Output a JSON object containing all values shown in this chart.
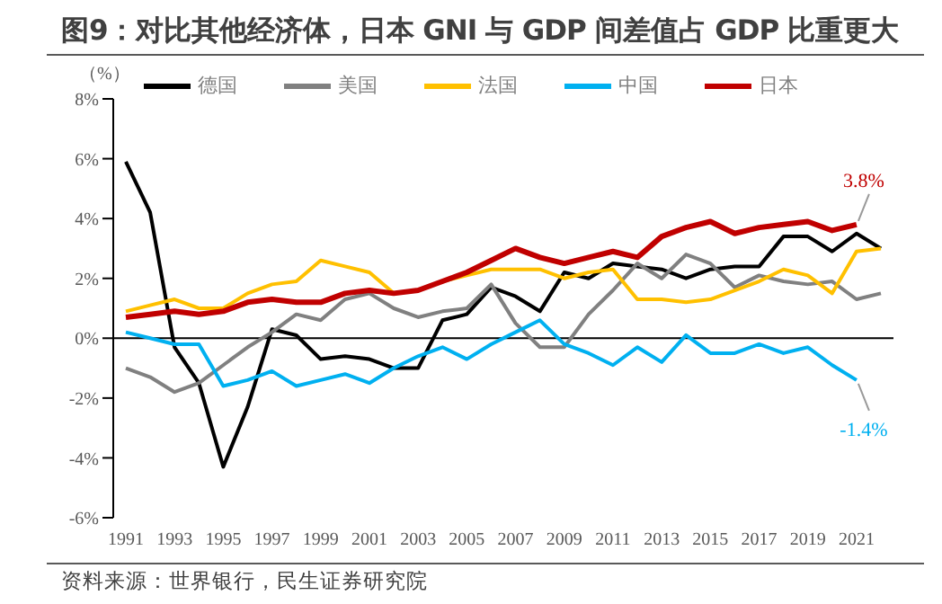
{
  "chart_data": {
    "type": "line",
    "title": "图9：对比其他经济体，日本 GNI 与 GDP 间差值占 GDP 比重更大",
    "ylabel": "（%）",
    "categories": [
      "1991",
      null,
      "1993",
      null,
      "1995",
      null,
      "1997",
      null,
      "1999",
      null,
      "2001",
      null,
      "2003",
      null,
      "2005",
      null,
      "2007",
      null,
      "2009",
      null,
      "2011",
      null,
      "2013",
      null,
      "2015",
      null,
      "2017",
      null,
      "2019",
      null,
      "2021",
      null
    ],
    "series": [
      {
        "name": "德国",
        "color": "#000000",
        "values": [
          5.9,
          4.2,
          -0.3,
          -1.5,
          -4.3,
          -2.3,
          0.3,
          0.1,
          -0.7,
          -0.6,
          -0.7,
          -1.0,
          -1.0,
          0.6,
          0.8,
          1.7,
          1.4,
          0.9,
          2.2,
          2.0,
          2.5,
          2.4,
          2.3,
          2.0,
          2.3,
          2.4,
          2.4,
          3.4,
          3.4,
          2.9,
          3.5,
          3.0
        ]
      },
      {
        "name": "美国",
        "color": "#808080",
        "values": [
          -1.0,
          -1.3,
          -1.8,
          -1.5,
          -0.9,
          -0.3,
          0.2,
          0.8,
          0.6,
          1.3,
          1.5,
          1.0,
          0.7,
          0.9,
          1.0,
          1.8,
          0.5,
          -0.3,
          -0.3,
          0.8,
          1.6,
          2.5,
          2.0,
          2.8,
          2.5,
          1.7,
          2.1,
          1.9,
          1.8,
          1.9,
          1.3,
          1.5
        ]
      },
      {
        "name": "法国",
        "color": "#ffc000",
        "values": [
          0.9,
          1.1,
          1.3,
          1.0,
          1.0,
          1.5,
          1.8,
          1.9,
          2.6,
          2.4,
          2.2,
          1.5,
          1.6,
          1.9,
          2.1,
          2.3,
          2.3,
          2.3,
          2.0,
          2.2,
          2.3,
          1.3,
          1.3,
          1.2,
          1.3,
          1.6,
          1.9,
          2.3,
          2.1,
          1.5,
          2.9,
          3.0
        ]
      },
      {
        "name": "中国",
        "color": "#00b0f0",
        "values": [
          0.2,
          0.0,
          -0.2,
          -0.2,
          -1.6,
          -1.4,
          -1.1,
          -1.6,
          -1.4,
          -1.2,
          -1.5,
          -1.0,
          -0.6,
          -0.3,
          -0.7,
          -0.2,
          0.2,
          0.6,
          -0.2,
          -0.5,
          -0.9,
          -0.3,
          -0.8,
          0.1,
          -0.5,
          -0.5,
          -0.2,
          -0.5,
          -0.3,
          -0.9,
          -1.4,
          null
        ]
      },
      {
        "name": "日本",
        "color": "#c00000",
        "values": [
          0.7,
          0.8,
          0.9,
          0.8,
          0.9,
          1.2,
          1.3,
          1.2,
          1.2,
          1.5,
          1.6,
          1.5,
          1.6,
          1.9,
          2.2,
          2.6,
          3.0,
          2.7,
          2.5,
          2.7,
          2.9,
          2.7,
          3.4,
          3.7,
          3.9,
          3.5,
          3.7,
          3.8,
          3.9,
          3.6,
          3.8,
          null
        ]
      }
    ],
    "ylim": [
      -6,
      8
    ],
    "yticks": [
      {
        "value": -6,
        "label": "-6%"
      },
      {
        "value": -4,
        "label": "-4%"
      },
      {
        "value": -2,
        "label": "-2%"
      },
      {
        "value": 0,
        "label": "0%"
      },
      {
        "value": 2,
        "label": "2%"
      },
      {
        "value": 4,
        "label": "4%"
      },
      {
        "value": 6,
        "label": "6%"
      },
      {
        "value": 8,
        "label": "8%"
      }
    ],
    "legend": "top",
    "marker": "none",
    "line_style": "solid",
    "ref_lines": [
      {
        "axis": "y",
        "value": 0,
        "color": "#000000"
      }
    ],
    "annotations": [
      {
        "text": "3.8%",
        "x": "2021",
        "y": 3.8
      },
      {
        "text": "-1.4%",
        "x": "2021",
        "y": -1.4
      },
      "资料来源：世界银行，民生证券研究院"
    ]
  }
}
